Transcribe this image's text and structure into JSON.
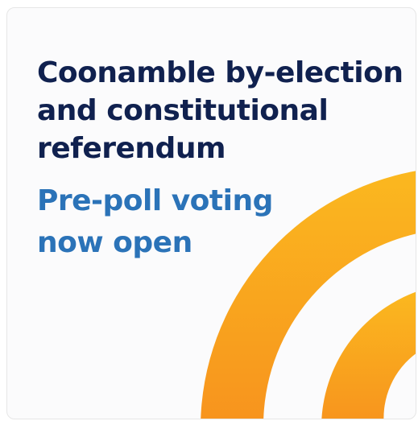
{
  "headline": {
    "line1": "Coonamble by-election",
    "line2": "and constitutional",
    "line3": "referendum"
  },
  "subheadline": {
    "line1": "Pre-poll voting",
    "line2": "now open"
  },
  "colors": {
    "headline": "#10214f",
    "subheadline": "#2b73b8",
    "arc_light": "#fbb81f",
    "arc_dark": "#f7931e",
    "background": "#fbfbfc"
  },
  "graphic": {
    "icon": "signal-arcs-graphic"
  }
}
